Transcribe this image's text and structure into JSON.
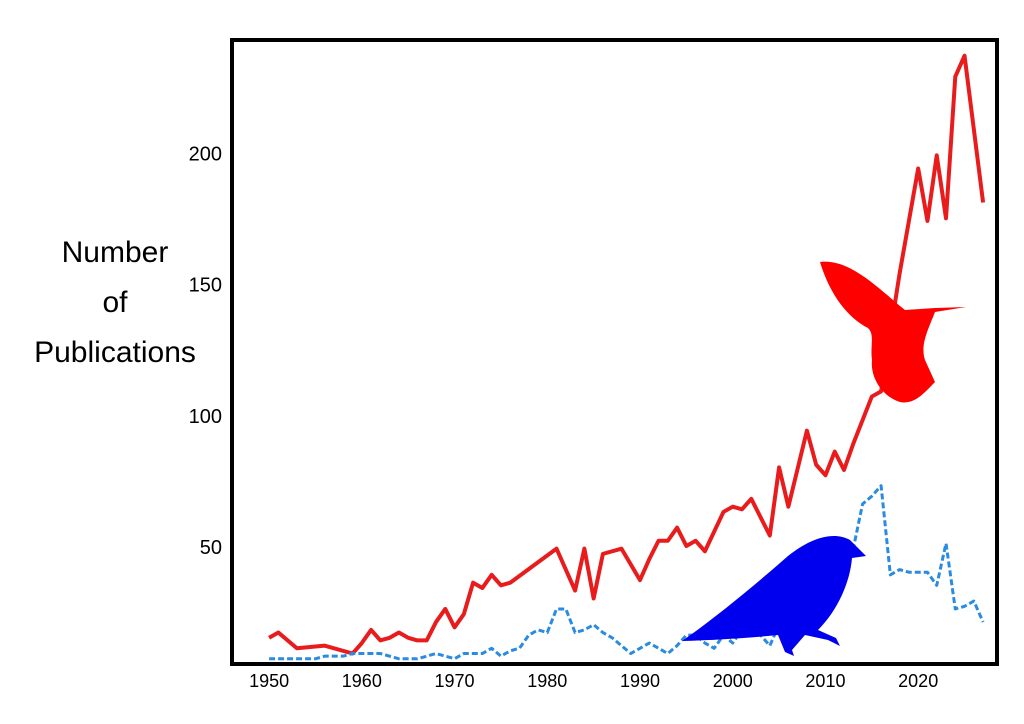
{
  "chart_data": {
    "type": "line",
    "y_label": "Number\nof\nPublications",
    "xlim": [
      1946,
      2028.5
    ],
    "xticks": [
      1950,
      1960,
      1970,
      1980,
      1990,
      2000,
      2010,
      2020
    ],
    "ylim": [
      6,
      244
    ],
    "yticks": [
      50,
      100,
      150,
      200
    ],
    "series": [
      {
        "color": "#e81c1c",
        "dashed": false,
        "x": [
          1950,
          1951,
          1953,
          1956,
          1959,
          1960,
          1961,
          1962,
          1963,
          1964,
          1965,
          1966,
          1967,
          1968,
          1969,
          1970,
          1971,
          1972,
          1973,
          1974,
          1975,
          1976,
          1981,
          1983,
          1984,
          1985,
          1986,
          1988,
          1990,
          1991,
          1992,
          1993,
          1994,
          1995,
          1996,
          1997,
          1999,
          2000,
          2001,
          2002,
          2004,
          2005,
          2006,
          2008,
          2009,
          2010,
          2011,
          2012,
          2013,
          2015,
          2016,
          2018,
          2020,
          2021,
          2022,
          2023,
          2024,
          2025,
          2027
        ],
        "values": [
          16,
          18,
          12,
          13,
          10,
          14,
          19,
          15,
          16,
          18,
          16,
          15,
          15,
          22,
          27,
          20,
          25,
          37,
          35,
          40,
          36,
          37,
          50,
          34,
          50,
          31,
          48,
          50,
          38,
          46,
          53,
          53,
          58,
          51,
          53,
          49,
          64,
          66,
          65,
          69,
          55,
          81,
          66,
          95,
          82,
          78,
          87,
          80,
          90,
          108,
          110,
          155,
          195,
          175,
          200,
          176,
          230,
          238,
          182
        ]
      },
      {
        "color": "#2a8be0",
        "dashed": true,
        "x": [
          1950,
          1951,
          1952,
          1953,
          1954,
          1955,
          1956,
          1957,
          1958,
          1959,
          1960,
          1961,
          1962,
          1963,
          1964,
          1965,
          1966,
          1967,
          1968,
          1969,
          1970,
          1971,
          1972,
          1973,
          1974,
          1975,
          1976,
          1977,
          1978,
          1979,
          1980,
          1981,
          1982,
          1983,
          1984,
          1985,
          1986,
          1987,
          1988,
          1989,
          1990,
          1991,
          1992,
          1993,
          1994,
          1995,
          1996,
          1997,
          1998,
          1999,
          2000,
          2001,
          2002,
          2003,
          2004,
          2005,
          2006,
          2007,
          2008,
          2009,
          2010,
          2011,
          2012,
          2013,
          2014,
          2015,
          2016,
          2017,
          2018,
          2019,
          2020,
          2021,
          2022,
          2023,
          2024,
          2025,
          2026,
          2027
        ],
        "values": [
          8,
          8,
          8,
          8,
          8,
          8,
          9,
          9,
          9,
          10,
          10,
          10,
          10,
          9,
          8,
          8,
          8,
          9,
          10,
          9,
          8,
          10,
          10,
          10,
          12,
          9,
          11,
          12,
          17,
          19,
          18,
          27,
          27,
          18,
          19,
          21,
          18,
          16,
          13,
          10,
          12,
          14,
          12,
          10,
          13,
          17,
          17,
          14,
          12,
          17,
          14,
          19,
          18,
          17,
          13,
          21,
          20,
          25,
          20,
          26,
          30,
          46,
          39,
          50,
          67,
          70,
          74,
          40,
          42,
          41,
          41,
          41,
          36,
          52,
          27,
          28,
          30,
          22
        ]
      }
    ]
  }
}
